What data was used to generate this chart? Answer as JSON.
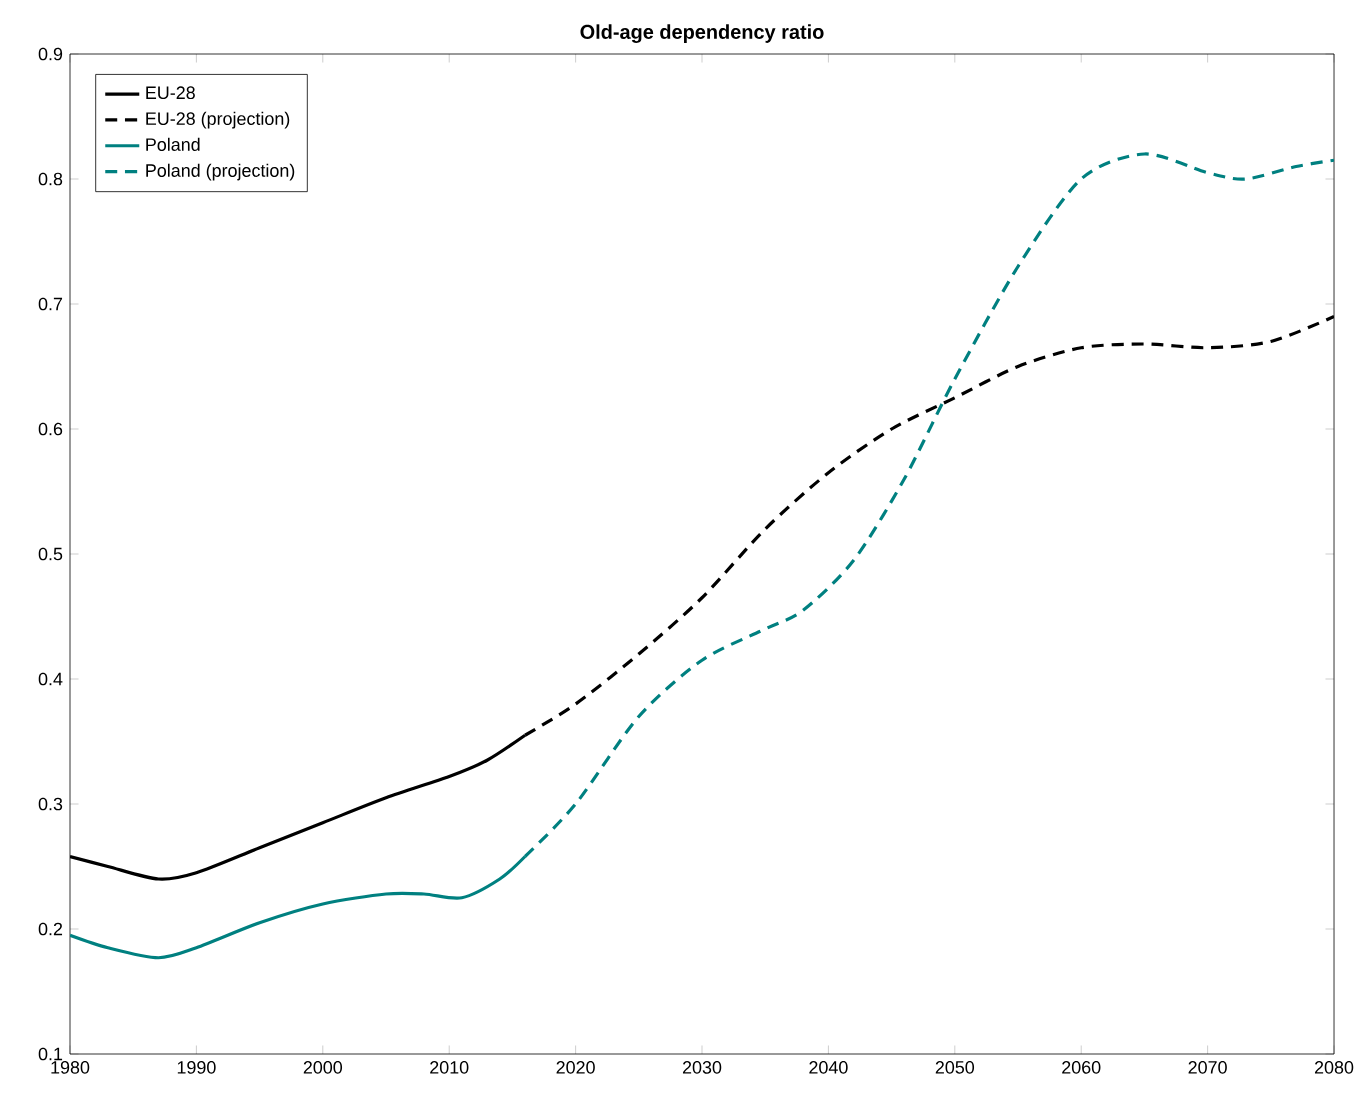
{
  "chart_data": {
    "type": "line",
    "title": "Old-age dependency ratio",
    "xlim": [
      1980,
      2080
    ],
    "xticks": [
      1980,
      1990,
      2000,
      2010,
      2020,
      2030,
      2040,
      2050,
      2060,
      2070,
      2080
    ],
    "ylim": [
      0.1,
      0.9
    ],
    "yticks": [
      0.1,
      0.2,
      0.3,
      0.4,
      0.5,
      0.6,
      0.7,
      0.8,
      0.9
    ],
    "grid": false,
    "legend": "top left",
    "marker": "none",
    "series": [
      {
        "name": "EU-28",
        "color": "#000000",
        "line_style": "solid",
        "x": [
          1980,
          1983,
          1987,
          1990,
          1995,
          2000,
          2005,
          2010,
          2013,
          2016
        ],
        "values": [
          0.258,
          0.25,
          0.24,
          0.245,
          0.265,
          0.285,
          0.305,
          0.322,
          0.335,
          0.355
        ]
      },
      {
        "name": "EU-28 (projection)",
        "color": "#000000",
        "line_style": "dashed",
        "x": [
          2016,
          2020,
          2025,
          2030,
          2035,
          2040,
          2045,
          2050,
          2055,
          2060,
          2065,
          2070,
          2075,
          2080
        ],
        "values": [
          0.355,
          0.38,
          0.42,
          0.465,
          0.52,
          0.565,
          0.6,
          0.625,
          0.65,
          0.665,
          0.668,
          0.665,
          0.67,
          0.69
        ]
      },
      {
        "name": "Poland",
        "color": "#008080",
        "line_style": "solid",
        "x": [
          1980,
          1983,
          1987,
          1990,
          1995,
          2000,
          2005,
          2008,
          2011,
          2014,
          2016
        ],
        "values": [
          0.195,
          0.185,
          0.177,
          0.185,
          0.205,
          0.22,
          0.228,
          0.228,
          0.225,
          0.24,
          0.258
        ]
      },
      {
        "name": "Poland (projection)",
        "color": "#008080",
        "line_style": "dashed",
        "x": [
          2016,
          2020,
          2025,
          2030,
          2035,
          2038,
          2042,
          2046,
          2050,
          2055,
          2060,
          2065,
          2070,
          2073,
          2077,
          2080
        ],
        "values": [
          0.258,
          0.3,
          0.37,
          0.415,
          0.44,
          0.455,
          0.495,
          0.56,
          0.64,
          0.73,
          0.8,
          0.82,
          0.805,
          0.8,
          0.81,
          0.815
        ]
      }
    ]
  }
}
